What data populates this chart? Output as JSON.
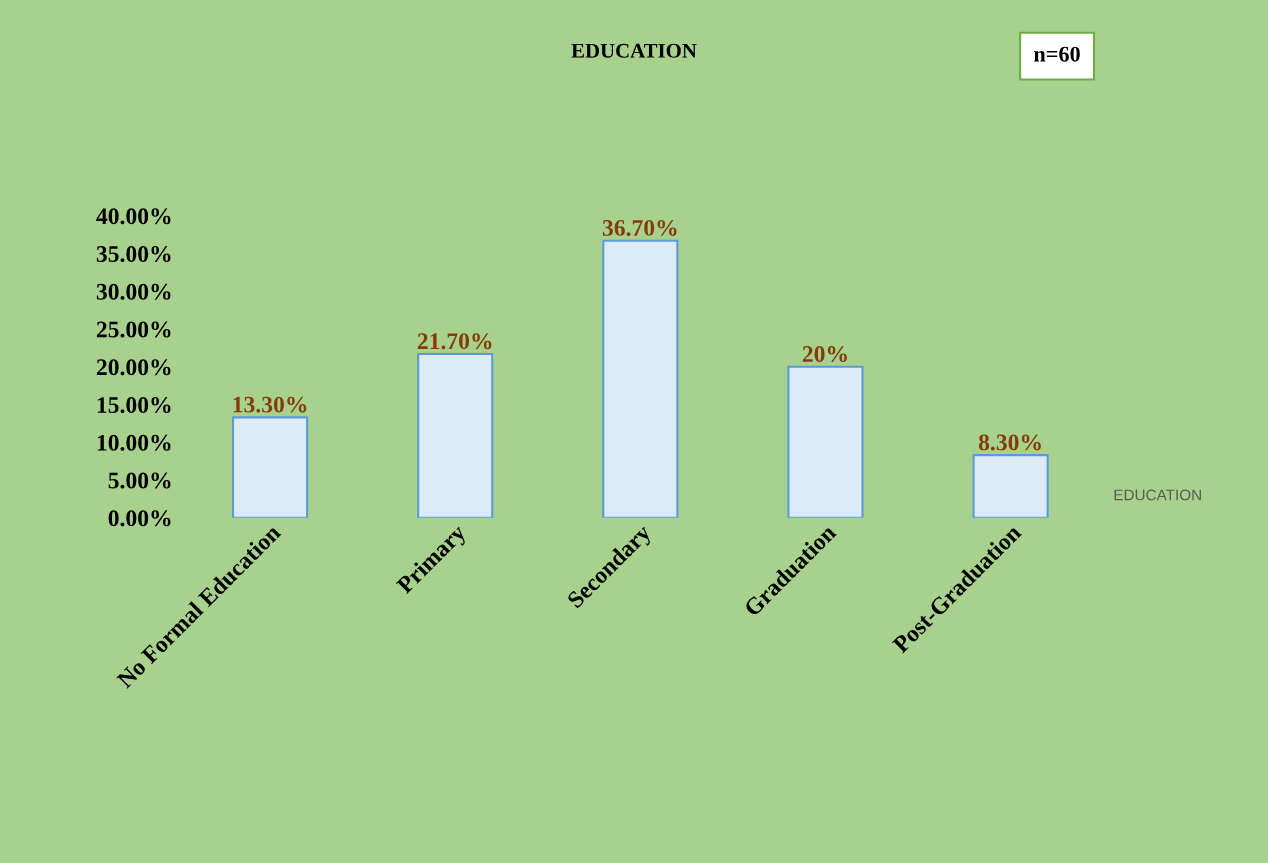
{
  "chart_data": {
    "type": "bar",
    "title": "EDUCATION",
    "categories": [
      "No Formal Education",
      "Primary",
      "Secondary",
      "Graduation",
      "Post-Graduation"
    ],
    "values": [
      13.3,
      21.7,
      36.7,
      20,
      8.3
    ],
    "value_labels": [
      "13.30%",
      "21.70%",
      "36.70%",
      "20%",
      "8.30%"
    ],
    "color": "#ddebf7",
    "ylim": [
      0,
      40
    ],
    "yticks": [
      {
        "value": 0,
        "label": "0.00%"
      },
      {
        "value": 5,
        "label": "5.00%"
      },
      {
        "value": 10,
        "label": "10.00%"
      },
      {
        "value": 15,
        "label": "15.00%"
      },
      {
        "value": 20,
        "label": "20.00%"
      },
      {
        "value": 25,
        "label": "25.00%"
      },
      {
        "value": 30,
        "label": "30.00%"
      },
      {
        "value": 35,
        "label": "35.00%"
      },
      {
        "value": 40,
        "label": "40.00%"
      }
    ],
    "grid": false,
    "legend": false,
    "annotations": [
      "n=60",
      "EDUCATION"
    ]
  }
}
